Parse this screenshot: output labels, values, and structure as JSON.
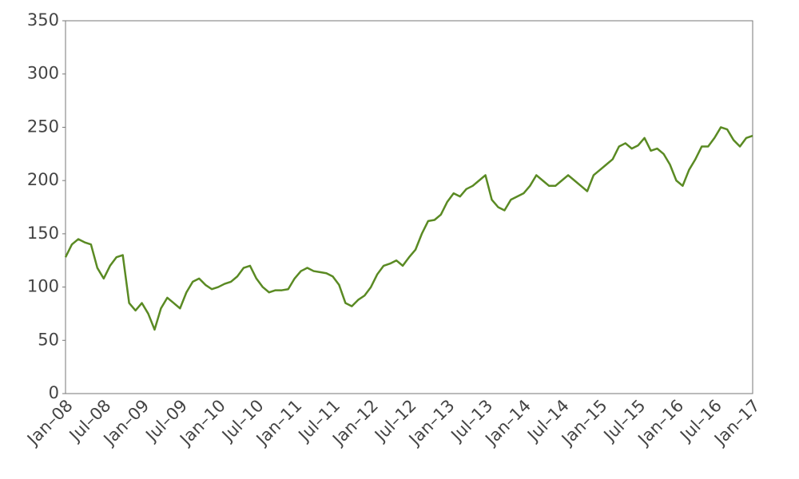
{
  "chart_data": {
    "type": "line",
    "categories": [
      "Jan–08",
      null,
      null,
      null,
      null,
      null,
      "Jul–08",
      null,
      null,
      null,
      null,
      null,
      "Jan–09",
      null,
      null,
      null,
      null,
      null,
      "Jul–09",
      null,
      null,
      null,
      null,
      null,
      "Jan–10",
      null,
      null,
      null,
      null,
      null,
      "Jul–10",
      null,
      null,
      null,
      null,
      null,
      "Jan–11",
      null,
      null,
      null,
      null,
      null,
      "Jul–11",
      null,
      null,
      null,
      null,
      null,
      "Jan–12",
      null,
      null,
      null,
      null,
      null,
      "Jul–12",
      null,
      null,
      null,
      null,
      null,
      "Jan–13",
      null,
      null,
      null,
      null,
      null,
      "Jul–13",
      null,
      null,
      null,
      null,
      null,
      "Jan–14",
      null,
      null,
      null,
      null,
      null,
      "Jul–14",
      null,
      null,
      null,
      null,
      null,
      "Jan–15",
      null,
      null,
      null,
      null,
      null,
      "Jul–15",
      null,
      null,
      null,
      null,
      null,
      "Jan–16",
      null,
      null,
      null,
      null,
      null,
      "Jul–16",
      null,
      null,
      null,
      null,
      null,
      "Jan–17"
    ],
    "values": [
      128,
      140,
      145,
      142,
      140,
      118,
      108,
      120,
      128,
      130,
      85,
      78,
      85,
      75,
      60,
      80,
      90,
      85,
      80,
      95,
      105,
      108,
      102,
      98,
      100,
      103,
      105,
      110,
      118,
      120,
      108,
      100,
      95,
      97,
      97,
      98,
      108,
      115,
      118,
      115,
      114,
      113,
      110,
      102,
      85,
      82,
      88,
      92,
      100,
      112,
      120,
      122,
      125,
      120,
      128,
      135,
      150,
      162,
      163,
      168,
      180,
      188,
      185,
      192,
      195,
      200,
      205,
      182,
      175,
      172,
      182,
      185,
      188,
      195,
      205,
      200,
      195,
      195,
      200,
      205,
      200,
      195,
      190,
      205,
      210,
      215,
      220,
      232,
      235,
      230,
      233,
      240,
      228,
      230,
      225,
      215,
      200,
      195,
      210,
      220,
      232,
      232,
      240,
      250,
      248,
      238,
      232,
      240,
      242
    ],
    "color": "#5a8a23",
    "ylim": [
      0,
      350
    ],
    "yticks": [
      0,
      50,
      100,
      150,
      200,
      250,
      300,
      350
    ],
    "grid": false
  }
}
